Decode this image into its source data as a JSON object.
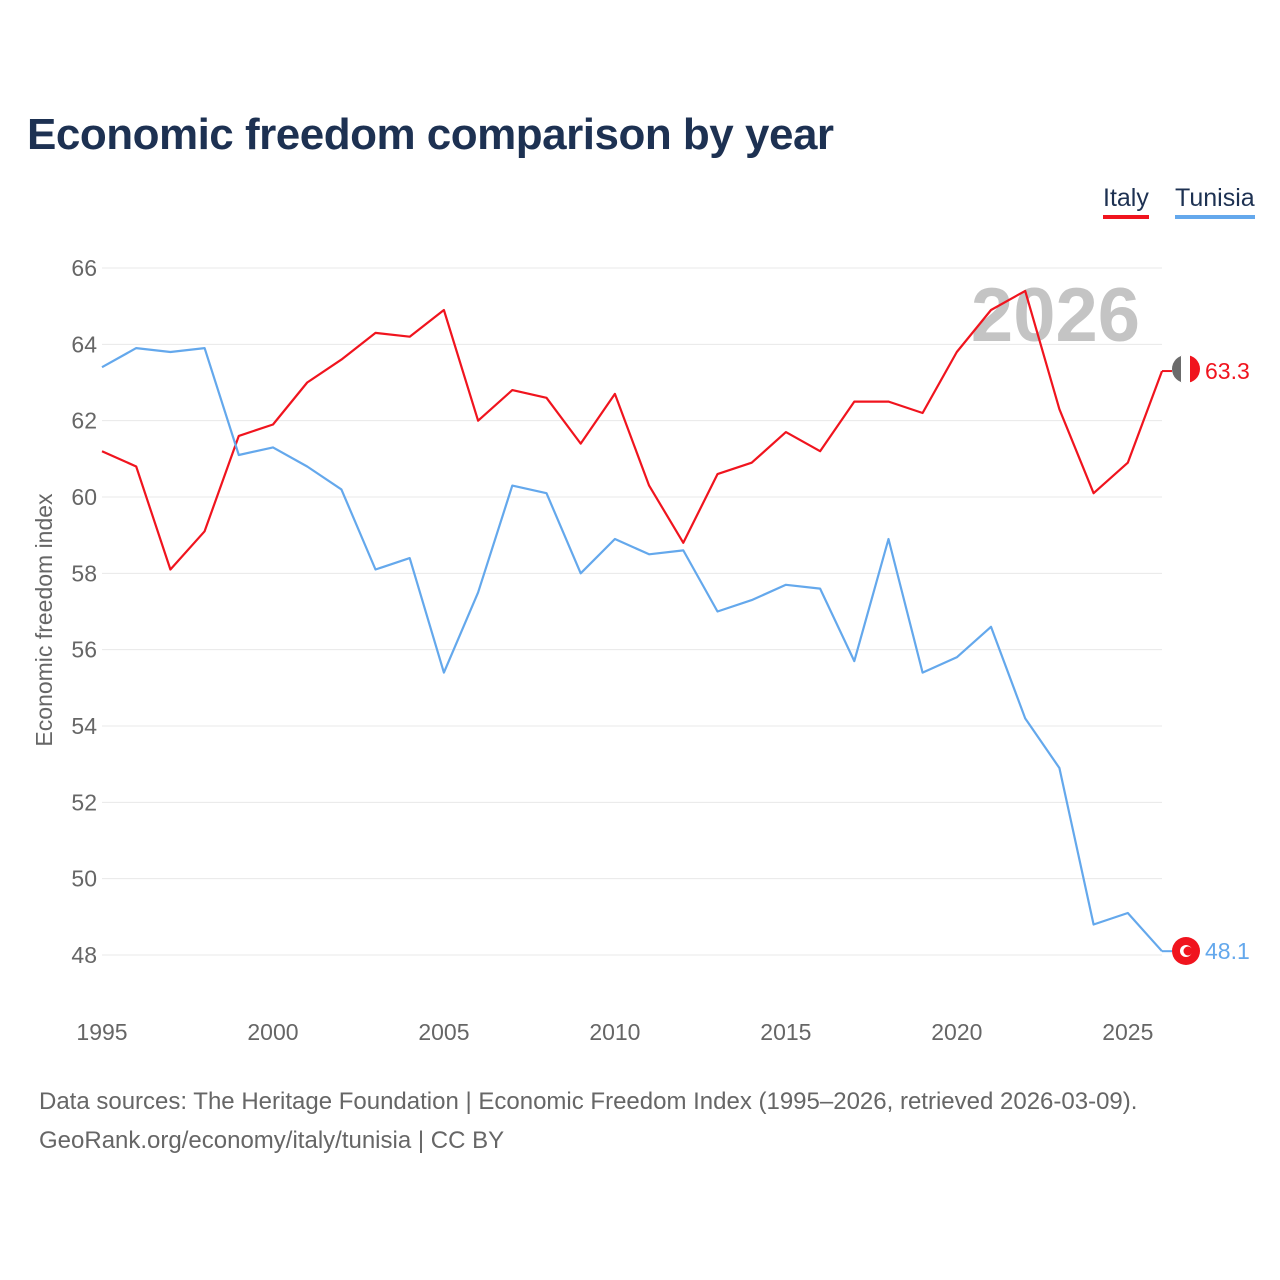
{
  "title": "Economic freedom comparison by year",
  "legend": {
    "italy": "Italy",
    "tunisia": "Tunisia"
  },
  "watermark_year": "2026",
  "sources": {
    "line1": "Data sources: The Heritage Foundation | Economic Freedom Index (1995–2026, retrieved 2026-03-09).",
    "line2": "GeoRank.org/economy/italy/tunisia | CC BY"
  },
  "chart_data": {
    "type": "line",
    "title": "Economic freedom comparison by year",
    "xlabel": "",
    "ylabel": "Economic freedom index",
    "xlim": [
      1995,
      2026
    ],
    "ylim": [
      48,
      66
    ],
    "xticks": [
      1995,
      2000,
      2005,
      2010,
      2015,
      2020,
      2025
    ],
    "yticks": [
      48,
      50,
      52,
      54,
      56,
      58,
      60,
      62,
      64,
      66
    ],
    "grid": true,
    "legend_position": "top-right",
    "x": [
      1995,
      1996,
      1997,
      1998,
      1999,
      2000,
      2001,
      2002,
      2003,
      2004,
      2005,
      2006,
      2007,
      2008,
      2009,
      2010,
      2011,
      2012,
      2013,
      2014,
      2015,
      2016,
      2017,
      2018,
      2019,
      2020,
      2021,
      2022,
      2023,
      2024,
      2025,
      2026
    ],
    "series": [
      {
        "name": "Italy",
        "color": "#f0141e",
        "end_label": "63.3",
        "values": [
          61.2,
          60.8,
          58.1,
          59.1,
          61.6,
          61.9,
          63.0,
          63.6,
          64.3,
          64.2,
          64.9,
          62.0,
          62.8,
          62.6,
          61.4,
          62.7,
          60.3,
          58.8,
          60.6,
          60.9,
          61.7,
          61.2,
          62.5,
          62.5,
          62.2,
          63.8,
          64.9,
          65.4,
          62.3,
          60.1,
          60.9,
          63.3
        ]
      },
      {
        "name": "Tunisia",
        "color": "#64a8ec",
        "end_label": "48.1",
        "values": [
          63.4,
          63.9,
          63.8,
          63.9,
          61.1,
          61.3,
          60.8,
          60.2,
          58.1,
          58.4,
          55.4,
          57.5,
          60.3,
          60.1,
          58.0,
          58.9,
          58.5,
          58.6,
          57.0,
          57.3,
          57.7,
          57.6,
          55.7,
          58.9,
          55.4,
          55.8,
          56.6,
          54.2,
          52.9,
          48.8,
          49.1,
          48.1
        ]
      }
    ]
  }
}
